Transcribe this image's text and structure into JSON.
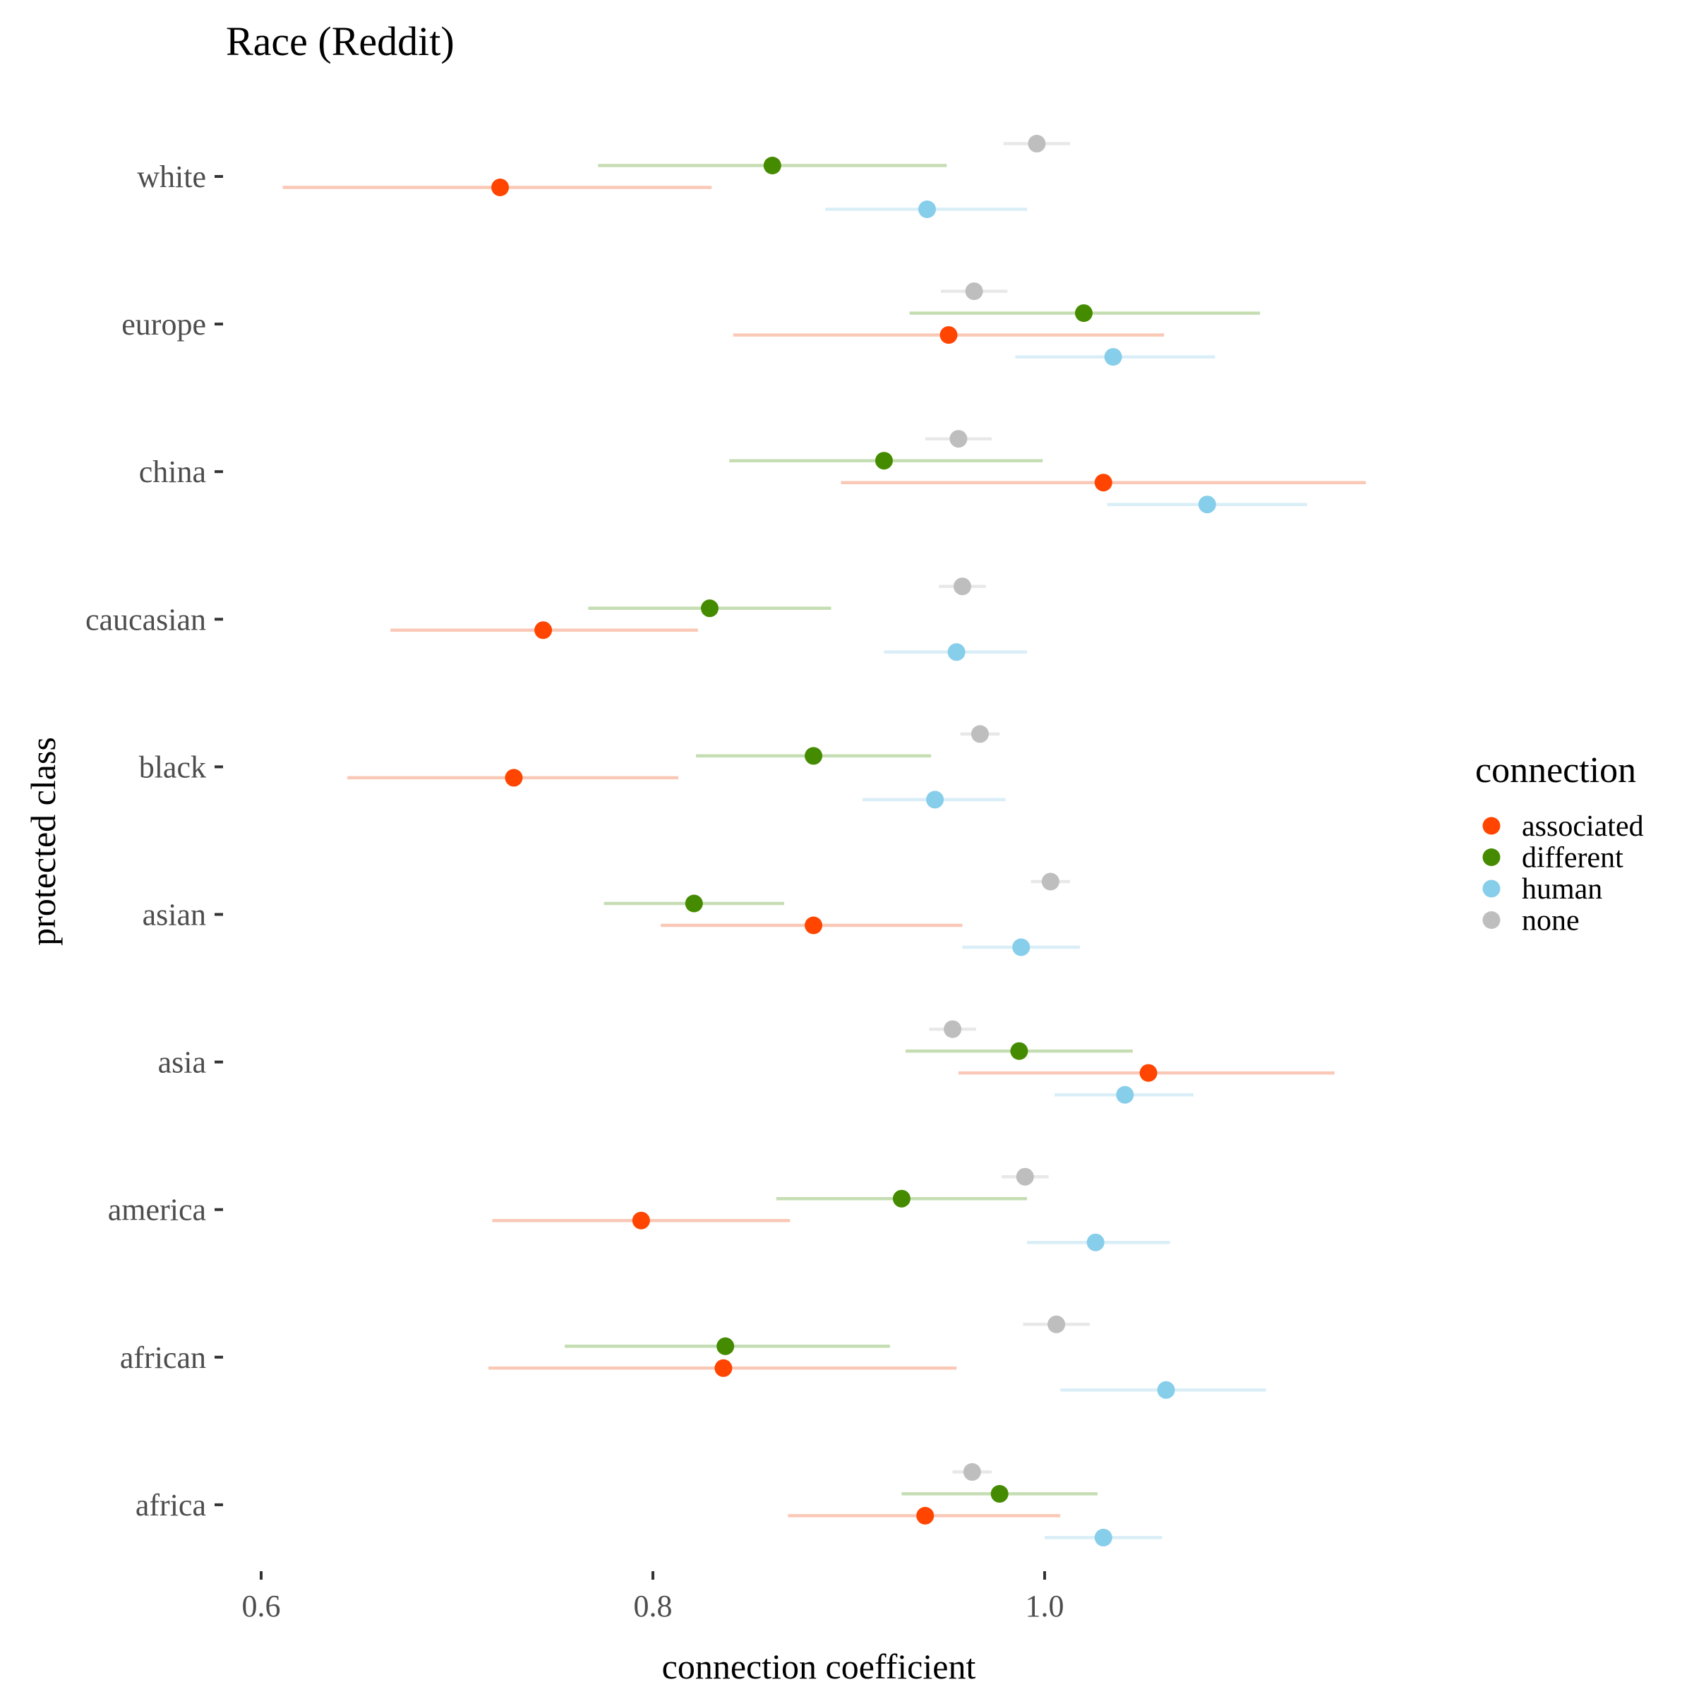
{
  "chart_data": {
    "type": "scatter",
    "subtype": "dot-and-interval",
    "title": "Race (Reddit)",
    "xlabel": "connection coefficient",
    "ylabel": "protected class",
    "xlim": [
      0.59,
      1.21
    ],
    "x_ticks": [
      0.6,
      0.8,
      1.0
    ],
    "x_tick_labels": [
      "0.6",
      "0.8",
      "1.0"
    ],
    "categories": [
      "white",
      "europe",
      "china",
      "caucasian",
      "black",
      "asian",
      "asia",
      "america",
      "african",
      "africa"
    ],
    "grid": false,
    "legend": {
      "title": "connection",
      "position": "right",
      "entries": [
        "associated",
        "different",
        "human",
        "none"
      ]
    },
    "series": [
      {
        "name": "none",
        "color": "#BEBEBE",
        "interval_color": "#E8E8E8",
        "offset": 1.5,
        "points": [
          {
            "category": "white",
            "x": 0.996,
            "lo": 0.979,
            "hi": 1.013
          },
          {
            "category": "europe",
            "x": 0.964,
            "lo": 0.947,
            "hi": 0.981
          },
          {
            "category": "china",
            "x": 0.956,
            "lo": 0.939,
            "hi": 0.973
          },
          {
            "category": "caucasian",
            "x": 0.958,
            "lo": 0.946,
            "hi": 0.97
          },
          {
            "category": "black",
            "x": 0.967,
            "lo": 0.957,
            "hi": 0.977
          },
          {
            "category": "asian",
            "x": 1.003,
            "lo": 0.993,
            "hi": 1.013
          },
          {
            "category": "asia",
            "x": 0.953,
            "lo": 0.941,
            "hi": 0.965
          },
          {
            "category": "america",
            "x": 0.99,
            "lo": 0.978,
            "hi": 1.002
          },
          {
            "category": "african",
            "x": 1.006,
            "lo": 0.989,
            "hi": 1.023
          },
          {
            "category": "africa",
            "x": 0.963,
            "lo": 0.953,
            "hi": 0.973
          }
        ]
      },
      {
        "name": "different",
        "color": "#458B00",
        "interval_color": "#C5DDB2",
        "offset": 0.5,
        "points": [
          {
            "category": "white",
            "x": 0.861,
            "lo": 0.772,
            "hi": 0.95
          },
          {
            "category": "europe",
            "x": 1.02,
            "lo": 0.931,
            "hi": 1.11
          },
          {
            "category": "china",
            "x": 0.918,
            "lo": 0.839,
            "hi": 0.999
          },
          {
            "category": "caucasian",
            "x": 0.829,
            "lo": 0.767,
            "hi": 0.891
          },
          {
            "category": "black",
            "x": 0.882,
            "lo": 0.822,
            "hi": 0.942
          },
          {
            "category": "asian",
            "x": 0.821,
            "lo": 0.775,
            "hi": 0.867
          },
          {
            "category": "asia",
            "x": 0.987,
            "lo": 0.929,
            "hi": 1.045
          },
          {
            "category": "america",
            "x": 0.927,
            "lo": 0.863,
            "hi": 0.991
          },
          {
            "category": "african",
            "x": 0.837,
            "lo": 0.755,
            "hi": 0.921
          },
          {
            "category": "africa",
            "x": 0.977,
            "lo": 0.927,
            "hi": 1.027
          }
        ]
      },
      {
        "name": "associated",
        "color": "#FF4500",
        "interval_color": "#FAC8B6",
        "offset": -0.5,
        "points": [
          {
            "category": "white",
            "x": 0.722,
            "lo": 0.611,
            "hi": 0.83
          },
          {
            "category": "europe",
            "x": 0.951,
            "lo": 0.841,
            "hi": 1.061
          },
          {
            "category": "china",
            "x": 1.03,
            "lo": 0.896,
            "hi": 1.164
          },
          {
            "category": "caucasian",
            "x": 0.744,
            "lo": 0.666,
            "hi": 0.823
          },
          {
            "category": "black",
            "x": 0.729,
            "lo": 0.644,
            "hi": 0.813
          },
          {
            "category": "asian",
            "x": 0.882,
            "lo": 0.804,
            "hi": 0.958
          },
          {
            "category": "asia",
            "x": 1.053,
            "lo": 0.956,
            "hi": 1.148
          },
          {
            "category": "america",
            "x": 0.794,
            "lo": 0.718,
            "hi": 0.87
          },
          {
            "category": "african",
            "x": 0.836,
            "lo": 0.716,
            "hi": 0.955
          },
          {
            "category": "africa",
            "x": 0.939,
            "lo": 0.869,
            "hi": 1.008
          }
        ]
      },
      {
        "name": "human",
        "color": "#87CEEB",
        "interval_color": "#D9EEF7",
        "offset": -1.5,
        "points": [
          {
            "category": "white",
            "x": 0.94,
            "lo": 0.888,
            "hi": 0.991
          },
          {
            "category": "europe",
            "x": 1.035,
            "lo": 0.985,
            "hi": 1.087
          },
          {
            "category": "china",
            "x": 1.083,
            "lo": 1.032,
            "hi": 1.134
          },
          {
            "category": "caucasian",
            "x": 0.955,
            "lo": 0.918,
            "hi": 0.991
          },
          {
            "category": "black",
            "x": 0.944,
            "lo": 0.907,
            "hi": 0.98
          },
          {
            "category": "asian",
            "x": 0.988,
            "lo": 0.958,
            "hi": 1.018
          },
          {
            "category": "asia",
            "x": 1.041,
            "lo": 1.005,
            "hi": 1.076
          },
          {
            "category": "america",
            "x": 1.026,
            "lo": 0.991,
            "hi": 1.064
          },
          {
            "category": "african",
            "x": 1.062,
            "lo": 1.008,
            "hi": 1.113
          },
          {
            "category": "africa",
            "x": 1.03,
            "lo": 1.0,
            "hi": 1.06
          }
        ]
      }
    ]
  }
}
